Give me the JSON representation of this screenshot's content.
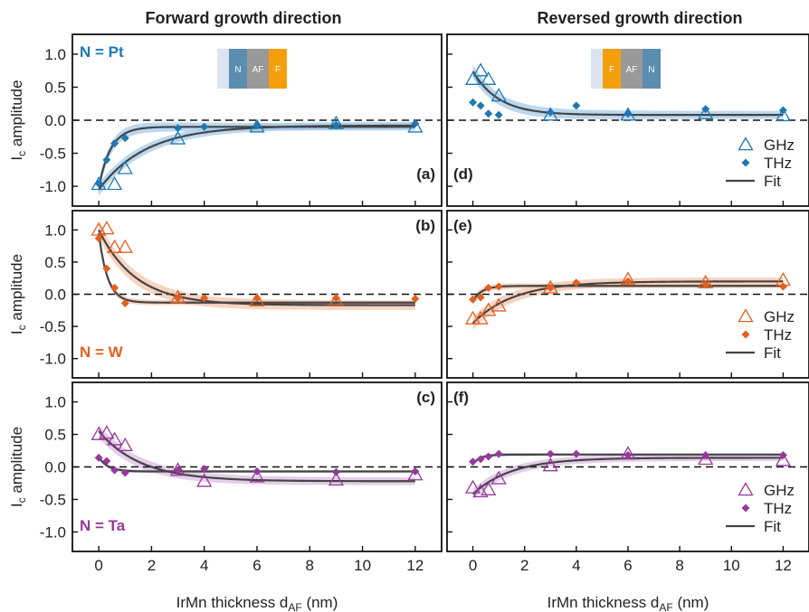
{
  "columns": [
    {
      "title": "Forward growth direction"
    },
    {
      "title": "Reversed growth direction"
    }
  ],
  "colors": {
    "Pt": "#1f77b4",
    "W": "#e06020",
    "Ta": "#96399a",
    "fit": "#444444",
    "Pt_band": "#a6cbe8",
    "W_band": "#f4c6ad",
    "Ta_band": "#dcbde4",
    "inset_N": "#5a8db0",
    "inset_AF": "#999999",
    "inset_F": "#f59e0b",
    "inset_sub": "#dbe4f0"
  },
  "insets": {
    "forward": [
      "N",
      "AF",
      "F"
    ],
    "reversed": [
      "F",
      "AF",
      "N"
    ]
  },
  "legend": {
    "ghz": "GHz",
    "thz": "THz",
    "fit": "Fit"
  },
  "chart_data": [
    {
      "type": "scatter",
      "panel": "(a)",
      "material_label": "N = Pt",
      "color": "Pt",
      "xlabel": "IrMn thickness d_AF (nm)",
      "ylabel": "I_c amplitude",
      "xlim": [
        -1,
        13
      ],
      "ylim": [
        -1.3,
        1.3
      ],
      "xticks": [
        0,
        2,
        4,
        6,
        8,
        10,
        12
      ],
      "yticks": [
        1.0,
        0.5,
        0.0,
        -0.5,
        -1.0
      ],
      "zero_line": "dashed",
      "series": [
        {
          "name": "GHz",
          "marker": "open-triangle",
          "x": [
            0,
            0.6,
            1.0,
            3,
            6,
            9,
            12
          ],
          "y": [
            -0.97,
            -0.97,
            -0.73,
            -0.28,
            -0.1,
            -0.05,
            -0.1
          ]
        },
        {
          "name": "THz",
          "marker": "filled-diamond",
          "x": [
            0,
            0.3,
            0.6,
            1.0,
            3,
            4,
            6,
            9,
            12
          ],
          "y": [
            -0.96,
            -0.6,
            -0.35,
            -0.27,
            -0.12,
            -0.1,
            -0.08,
            -0.07,
            -0.05
          ]
        }
      ],
      "fits": [
        {
          "y0": -1.05,
          "yinf": -0.08,
          "tau": 1.8
        },
        {
          "y0": -1.02,
          "yinf": -0.1,
          "tau": 0.45
        }
      ],
      "bands": [
        {
          "halfwidth": 0.09
        },
        {
          "halfwidth": 0.09
        }
      ]
    },
    {
      "type": "scatter",
      "panel": "(b)",
      "material_label": "N = W",
      "color": "W",
      "xlabel": "IrMn thickness d_AF (nm)",
      "ylabel": "I_c amplitude",
      "xlim": [
        -1,
        13
      ],
      "ylim": [
        -1.3,
        1.3
      ],
      "xticks": [
        0,
        2,
        4,
        6,
        8,
        10,
        12
      ],
      "yticks": [
        1.0,
        0.5,
        0.0,
        -0.5,
        -1.0
      ],
      "zero_line": "dashed",
      "series": [
        {
          "name": "GHz",
          "marker": "open-triangle",
          "x": [
            0,
            0.3,
            0.6,
            1.0,
            3,
            6,
            9
          ],
          "y": [
            1.0,
            1.02,
            0.73,
            0.73,
            -0.05,
            -0.1,
            -0.1
          ]
        },
        {
          "name": "THz",
          "marker": "filled-diamond",
          "x": [
            0,
            0.3,
            0.6,
            1.0,
            3,
            4,
            6,
            9,
            12
          ],
          "y": [
            0.87,
            0.4,
            0.1,
            -0.14,
            -0.06,
            -0.06,
            -0.06,
            -0.06,
            -0.07
          ]
        }
      ],
      "fits": [
        {
          "y0": 1.0,
          "yinf": -0.17,
          "tau": 1.4
        },
        {
          "y0": 0.95,
          "yinf": -0.13,
          "tau": 0.33
        }
      ],
      "bands": [
        {
          "halfwidth": 0.12
        },
        {
          "halfwidth": 0.05
        }
      ]
    },
    {
      "type": "scatter",
      "panel": "(c)",
      "material_label": "N = Ta",
      "color": "Ta",
      "xlabel": "IrMn thickness d_AF (nm)",
      "ylabel": "I_c amplitude",
      "xlim": [
        -1,
        13
      ],
      "ylim": [
        -1.3,
        1.3
      ],
      "xticks": [
        0,
        2,
        4,
        6,
        8,
        10,
        12
      ],
      "yticks": [
        1.0,
        0.5,
        0.0,
        -0.5,
        -1.0
      ],
      "zero_line": "dashed",
      "series": [
        {
          "name": "GHz",
          "marker": "open-triangle",
          "x": [
            0,
            0.3,
            0.6,
            1.0,
            3,
            4,
            6,
            9,
            12
          ],
          "y": [
            0.5,
            0.52,
            0.42,
            0.33,
            -0.05,
            -0.22,
            -0.15,
            -0.2,
            -0.12
          ]
        },
        {
          "name": "THz",
          "marker": "filled-diamond",
          "x": [
            0,
            0.3,
            0.6,
            1.0,
            3,
            4,
            6,
            9,
            12
          ],
          "y": [
            0.14,
            0.09,
            -0.05,
            -0.09,
            -0.05,
            -0.03,
            -0.07,
            -0.08,
            -0.07
          ]
        }
      ],
      "fits": [
        {
          "y0": 0.55,
          "yinf": -0.22,
          "tau": 1.6
        },
        {
          "y0": 0.15,
          "yinf": -0.07,
          "tau": 0.35
        }
      ],
      "bands": [
        {
          "halfwidth": 0.1
        },
        {
          "halfwidth": 0.03
        }
      ]
    },
    {
      "type": "scatter",
      "panel": "(d)",
      "color": "Pt",
      "xlabel": "IrMn thickness d_AF (nm)",
      "xlim": [
        -1,
        13
      ],
      "ylim": [
        -1.3,
        1.3
      ],
      "xticks": [
        0,
        2,
        4,
        6,
        8,
        10,
        12
      ],
      "zero_line": "dashed",
      "legend": "lower-right",
      "series": [
        {
          "name": "GHz",
          "marker": "open-triangle",
          "x": [
            0,
            0.3,
            0.6,
            1.0,
            3,
            6,
            9,
            12
          ],
          "y": [
            0.62,
            0.75,
            0.62,
            0.37,
            0.08,
            0.08,
            0.1,
            0.07
          ]
        },
        {
          "name": "THz",
          "marker": "filled-diamond",
          "x": [
            0,
            0.3,
            0.6,
            1.0,
            3,
            4,
            6,
            9,
            12
          ],
          "y": [
            0.27,
            0.22,
            0.1,
            0.08,
            0.12,
            0.22,
            0.1,
            0.17,
            0.15
          ]
        }
      ],
      "fits": [
        {
          "y0": 0.74,
          "yinf": 0.08,
          "tau": 1.0
        }
      ],
      "bands": [
        {
          "halfwidth": 0.1
        }
      ]
    },
    {
      "type": "scatter",
      "panel": "(e)",
      "color": "W",
      "xlabel": "IrMn thickness d_AF (nm)",
      "xlim": [
        -1,
        13
      ],
      "ylim": [
        -1.3,
        1.3
      ],
      "xticks": [
        0,
        2,
        4,
        6,
        8,
        10,
        12
      ],
      "zero_line": "dashed",
      "legend": "lower-right",
      "series": [
        {
          "name": "GHz",
          "marker": "open-triangle",
          "x": [
            0,
            0.3,
            0.6,
            1.0,
            3,
            6,
            9,
            12
          ],
          "y": [
            -0.38,
            -0.38,
            -0.25,
            -0.18,
            0.1,
            0.23,
            0.18,
            0.22
          ]
        },
        {
          "name": "THz",
          "marker": "filled-diamond",
          "x": [
            0,
            0.3,
            0.6,
            1.0,
            3,
            4,
            6,
            9,
            12
          ],
          "y": [
            -0.08,
            -0.05,
            0.1,
            0.12,
            0.1,
            0.18,
            0.2,
            0.15,
            0.12
          ]
        }
      ],
      "fits": [
        {
          "y0": -0.45,
          "yinf": 0.2,
          "tau": 1.6
        },
        {
          "y0": -0.1,
          "yinf": 0.13,
          "tau": 0.35
        }
      ],
      "bands": [
        {
          "halfwidth": 0.1
        },
        {
          "halfwidth": 0.05
        }
      ]
    },
    {
      "type": "scatter",
      "panel": "(f)",
      "color": "Ta",
      "xlabel": "IrMn thickness d_AF (nm)",
      "xlim": [
        -1,
        13
      ],
      "ylim": [
        -1.3,
        1.3
      ],
      "xticks": [
        0,
        2,
        4,
        6,
        8,
        10,
        12
      ],
      "zero_line": "dashed",
      "legend": "lower-right",
      "series": [
        {
          "name": "GHz",
          "marker": "open-triangle",
          "x": [
            0,
            0.3,
            0.6,
            1.0,
            3,
            6,
            9,
            12
          ],
          "y": [
            -0.32,
            -0.38,
            -0.35,
            -0.18,
            0.02,
            0.2,
            0.12,
            0.1
          ]
        },
        {
          "name": "THz",
          "marker": "filled-diamond",
          "x": [
            0,
            0.3,
            0.6,
            1.0,
            3,
            4,
            6,
            9,
            12
          ],
          "y": [
            0.08,
            0.12,
            0.16,
            0.2,
            0.2,
            0.2,
            0.18,
            0.18,
            0.18
          ]
        }
      ],
      "fits": [
        {
          "y0": -0.42,
          "yinf": 0.14,
          "tau": 1.5
        },
        {
          "y0": 0.05,
          "yinf": 0.19,
          "tau": 0.3
        }
      ],
      "bands": [
        {
          "halfwidth": 0.08
        },
        {
          "halfwidth": 0.03
        }
      ]
    }
  ]
}
